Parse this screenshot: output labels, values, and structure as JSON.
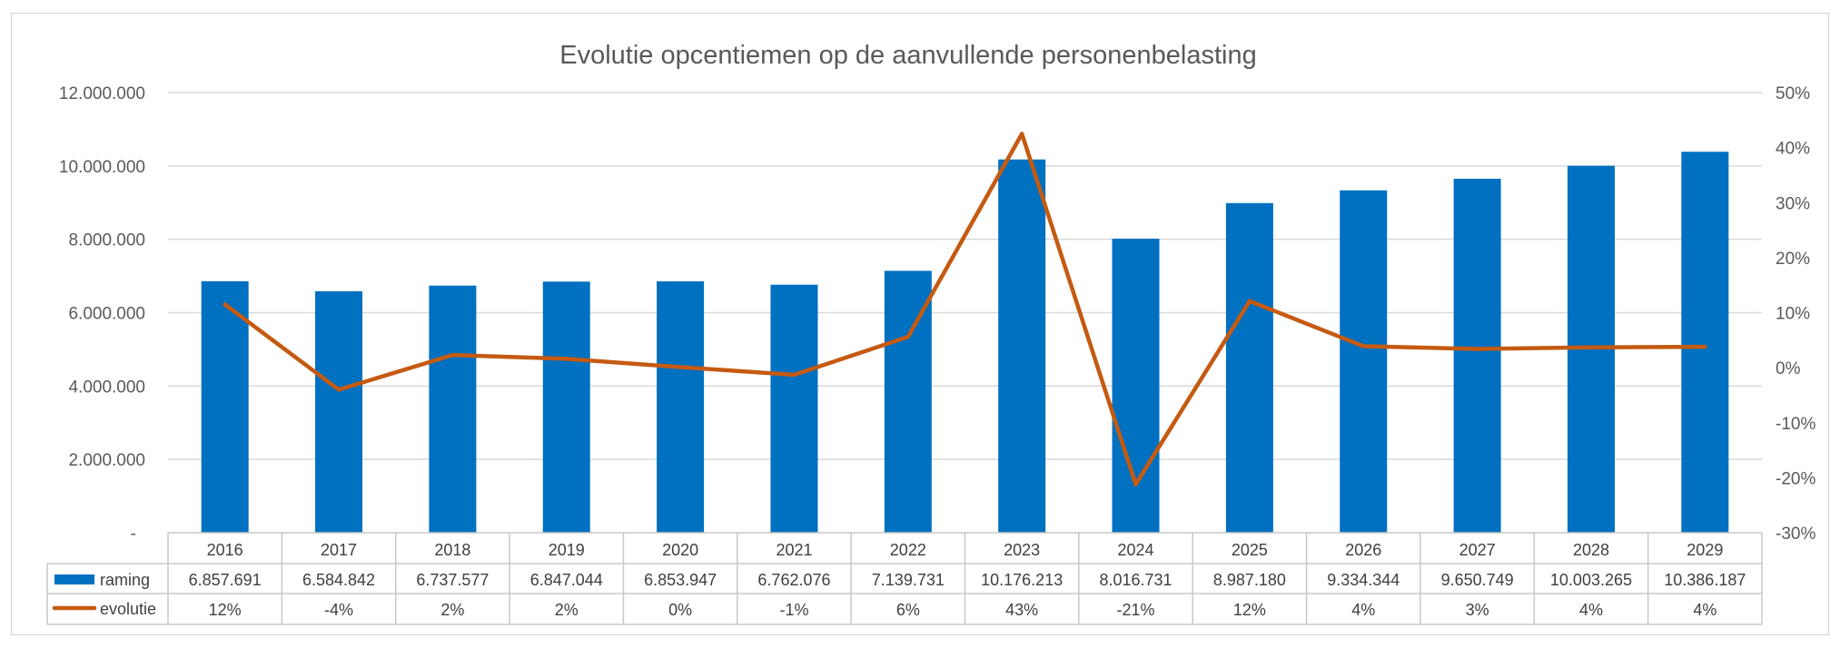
{
  "chart_data": {
    "type": "bar",
    "title": "Evolutie opcentiemen op de aanvullende personenbelasting",
    "categories": [
      "2016",
      "2017",
      "2018",
      "2019",
      "2020",
      "2021",
      "2022",
      "2023",
      "2024",
      "2025",
      "2026",
      "2027",
      "2028",
      "2029"
    ],
    "series": [
      {
        "name": "raming",
        "type": "bar",
        "axis": "left",
        "color": "#0070C0",
        "values": [
          6857691,
          6584842,
          6737577,
          6847044,
          6853947,
          6762076,
          7139731,
          10176213,
          8016731,
          8987180,
          9334344,
          9650749,
          10003265,
          10386187
        ],
        "labels": [
          "6.857.691",
          "6.584.842",
          "6.737.577",
          "6.847.044",
          "6.853.947",
          "6.762.076",
          "7.139.731",
          "10.176.213",
          "8.016.731",
          "8.987.180",
          "9.334.344",
          "9.650.749",
          "10.003.265",
          "10.386.187"
        ]
      },
      {
        "name": "evolutie",
        "type": "line",
        "axis": "right",
        "color": "#C55A11",
        "values": [
          0.115,
          -0.04,
          0.023,
          0.016,
          0.001,
          -0.013,
          0.056,
          0.425,
          -0.212,
          0.121,
          0.039,
          0.034,
          0.037,
          0.038
        ],
        "labels": [
          "12%",
          "-4%",
          "2%",
          "2%",
          "0%",
          "-1%",
          "6%",
          "43%",
          "-21%",
          "12%",
          "4%",
          "3%",
          "4%",
          "4%"
        ]
      }
    ],
    "y_left": {
      "ylim": [
        0,
        12000000
      ],
      "ticks": [
        "-",
        "2.000.000",
        "4.000.000",
        "6.000.000",
        "8.000.000",
        "10.000.000",
        "12.000.000"
      ]
    },
    "y_right": {
      "ylim": [
        -0.3,
        0.5
      ],
      "ticks": [
        "-30%",
        "-20%",
        "-10%",
        "0%",
        "10%",
        "20%",
        "30%",
        "40%",
        "50%"
      ]
    },
    "grid": true,
    "data_table": true
  }
}
